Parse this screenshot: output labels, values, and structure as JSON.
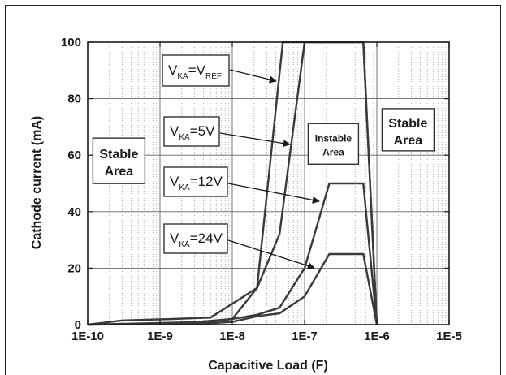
{
  "chart_data": {
    "type": "line",
    "title": "",
    "xlabel": "Capacitive Load (F)",
    "ylabel": "Cathode current (mA)",
    "x_scale": "log",
    "xlim": [
      1e-10,
      1e-05
    ],
    "ylim": [
      0,
      100
    ],
    "x_ticks": [
      1e-10,
      1e-09,
      1e-08,
      1e-07,
      1e-06,
      1e-05
    ],
    "x_tick_labels": [
      "1E-10",
      "1E-9",
      "1E-8",
      "1E-7",
      "1E-6",
      "1E-5"
    ],
    "y_ticks": [
      0,
      20,
      40,
      60,
      80,
      100
    ],
    "y_tick_labels": [
      "0",
      "20",
      "40",
      "60",
      "80",
      "100"
    ],
    "grid": true,
    "series": [
      {
        "name": "VKA=VREF",
        "label_main": "V",
        "label_sub1": "KA",
        "label_mid": "=V",
        "label_sub2": "REF",
        "points": [
          [
            1e-10,
            0
          ],
          [
            3e-10,
            1.5
          ],
          [
            1.5e-09,
            2
          ],
          [
            5e-09,
            2.5
          ],
          [
            2.2e-08,
            13
          ],
          [
            5e-08,
            100
          ],
          [
            6.5e-07,
            100
          ],
          [
            1e-06,
            0
          ]
        ]
      },
      {
        "name": "VKA=5V",
        "label_main": "V",
        "label_sub1": "KA",
        "label_mid": "=5V",
        "label_sub2": "",
        "points": [
          [
            1e-10,
            0
          ],
          [
            2e-09,
            0.5
          ],
          [
            1e-08,
            2
          ],
          [
            2.2e-08,
            13
          ],
          [
            4.5e-08,
            32
          ],
          [
            1e-07,
            100
          ],
          [
            6.5e-07,
            100
          ],
          [
            1e-06,
            0
          ]
        ]
      },
      {
        "name": "VKA=12V",
        "label_main": "V",
        "label_sub1": "KA",
        "label_mid": "=12V",
        "label_sub2": "",
        "points": [
          [
            1e-10,
            0
          ],
          [
            5e-09,
            1
          ],
          [
            1e-08,
            2
          ],
          [
            2.2e-08,
            3.5
          ],
          [
            4.5e-08,
            6
          ],
          [
            1e-07,
            20
          ],
          [
            2.2e-07,
            50
          ],
          [
            6.5e-07,
            50
          ],
          [
            1e-06,
            0
          ]
        ]
      },
      {
        "name": "VKA=24V",
        "label_main": "V",
        "label_sub1": "KA",
        "label_mid": "=24V",
        "label_sub2": "",
        "points": [
          [
            1e-10,
            0
          ],
          [
            5e-09,
            0.5
          ],
          [
            1e-08,
            1
          ],
          [
            2.2e-08,
            3
          ],
          [
            4.5e-08,
            4
          ],
          [
            1e-07,
            10
          ],
          [
            2.2e-07,
            25
          ],
          [
            6.5e-07,
            25
          ],
          [
            1e-06,
            0
          ]
        ]
      }
    ],
    "annotations": [
      {
        "text": "Stable Area",
        "line1": "Stable",
        "line2": "Area",
        "at": [
          2.7e-10,
          58
        ]
      },
      {
        "text": "Instable Area",
        "line1": "Instable",
        "line2": "Area",
        "at": [
          2.5e-07,
          64
        ]
      },
      {
        "text": "Stable Area",
        "line1": "Stable",
        "line2": "Area",
        "at": [
          2.7e-06,
          69
        ]
      }
    ]
  }
}
